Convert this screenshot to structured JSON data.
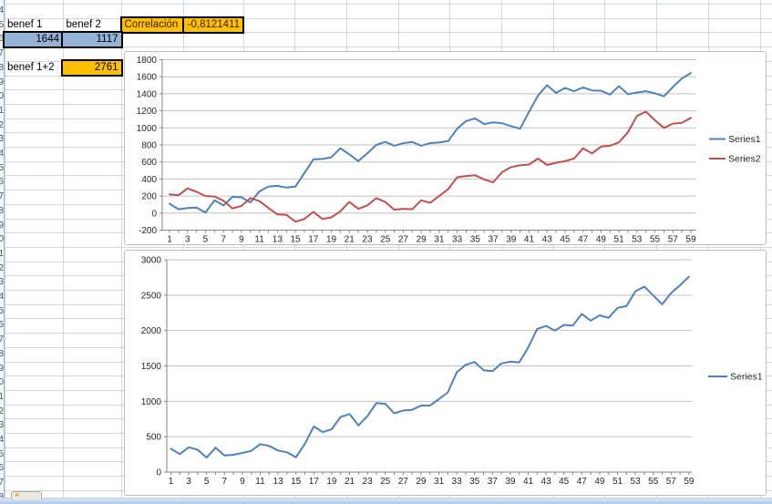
{
  "cells": {
    "benef1_label": "benef 1",
    "benef2_label": "benef 2",
    "benef1_value": "1644",
    "benef2_value": "1117",
    "correlation_label": "Correlación",
    "correlation_value": "-0,8121411",
    "sum_label": "benef 1+2",
    "sum_value": "2761"
  },
  "row_digits": [
    "3",
    "4",
    "5",
    "6",
    "7",
    "8",
    "9",
    "0",
    "1",
    "2",
    "3",
    "4",
    "5",
    "6",
    "7",
    "8",
    "9",
    "0",
    "1",
    "2",
    "3",
    "4",
    "5",
    "6",
    "7",
    "8",
    "9",
    "0",
    "1",
    "2",
    "3",
    "4",
    "5",
    "6",
    "7",
    "8"
  ],
  "icons": {
    "insert_worksheet": "star-icon",
    "insert_worksheet_glyph": "✶"
  },
  "colors": {
    "series1": "#4f81bd",
    "series2": "#c0504d",
    "cell_blue_fill": "#95b3d7",
    "cell_orange_fill": "#ffc000",
    "sheet_gridline": "#d0d7e5",
    "chart_gridline": "#c3c3c3",
    "chart_axis": "#868686",
    "chart_text": "#262626"
  },
  "chart_data": [
    {
      "type": "line",
      "title": "",
      "x": [
        1,
        2,
        3,
        4,
        5,
        6,
        7,
        8,
        9,
        10,
        11,
        12,
        13,
        14,
        15,
        16,
        17,
        18,
        19,
        20,
        21,
        22,
        23,
        24,
        25,
        26,
        27,
        28,
        29,
        30,
        31,
        32,
        33,
        34,
        35,
        36,
        37,
        38,
        39,
        40,
        41,
        42,
        43,
        44,
        45,
        46,
        47,
        48,
        49,
        50,
        51,
        52,
        53,
        54,
        55,
        56,
        57,
        58,
        59
      ],
      "series": [
        {
          "name": "Series1",
          "color": "#4f81bd",
          "values": [
            110,
            45,
            60,
            65,
            5,
            150,
            90,
            190,
            185,
            125,
            255,
            310,
            320,
            300,
            310,
            470,
            630,
            635,
            655,
            760,
            690,
            610,
            700,
            800,
            835,
            790,
            820,
            835,
            790,
            820,
            830,
            845,
            990,
            1080,
            1110,
            1045,
            1065,
            1055,
            1020,
            990,
            1190,
            1380,
            1500,
            1410,
            1470,
            1430,
            1475,
            1440,
            1435,
            1390,
            1490,
            1395,
            1415,
            1430,
            1405,
            1370,
            1480,
            1580,
            1644
          ]
        },
        {
          "name": "Series2",
          "color": "#c0504d",
          "values": [
            220,
            210,
            290,
            250,
            200,
            195,
            145,
            55,
            85,
            175,
            140,
            60,
            -15,
            -20,
            -100,
            -70,
            15,
            -70,
            -50,
            20,
            130,
            50,
            90,
            175,
            130,
            40,
            50,
            45,
            150,
            120,
            200,
            280,
            420,
            435,
            445,
            395,
            360,
            480,
            540,
            560,
            570,
            640,
            565,
            590,
            610,
            640,
            760,
            700,
            780,
            790,
            830,
            950,
            1140,
            1190,
            1090,
            1000,
            1050,
            1060,
            1117
          ]
        }
      ],
      "ylim": [
        -200,
        1800
      ],
      "ystep": 200,
      "ytick_labels": [
        "1800",
        "1600",
        "1400",
        "1200",
        "1000",
        "800",
        "600",
        "400",
        "200",
        "0",
        "-200"
      ],
      "xtick_labels": [
        "1",
        "3",
        "5",
        "7",
        "9",
        "11",
        "13",
        "15",
        "17",
        "19",
        "21",
        "23",
        "25",
        "27",
        "29",
        "31",
        "33",
        "35",
        "37",
        "39",
        "41",
        "43",
        "45",
        "47",
        "49",
        "51",
        "53",
        "55",
        "57",
        "59"
      ],
      "legend_position": "right",
      "grid": true
    },
    {
      "type": "line",
      "title": "",
      "x": [
        1,
        2,
        3,
        4,
        5,
        6,
        7,
        8,
        9,
        10,
        11,
        12,
        13,
        14,
        15,
        16,
        17,
        18,
        19,
        20,
        21,
        22,
        23,
        24,
        25,
        26,
        27,
        28,
        29,
        30,
        31,
        32,
        33,
        34,
        35,
        36,
        37,
        38,
        39,
        40,
        41,
        42,
        43,
        44,
        45,
        46,
        47,
        48,
        49,
        50,
        51,
        52,
        53,
        54,
        55,
        56,
        57,
        58,
        59
      ],
      "series": [
        {
          "name": "Series1",
          "color": "#4f81bd",
          "values": [
            330,
            255,
            350,
            315,
            205,
            345,
            235,
            245,
            270,
            300,
            395,
            370,
            305,
            280,
            210,
            400,
            645,
            565,
            605,
            780,
            820,
            660,
            790,
            975,
            965,
            830,
            870,
            880,
            940,
            940,
            1030,
            1125,
            1410,
            1515,
            1555,
            1440,
            1425,
            1535,
            1560,
            1550,
            1760,
            2020,
            2065,
            2000,
            2080,
            2070,
            2235,
            2140,
            2215,
            2180,
            2320,
            2345,
            2555,
            2620,
            2495,
            2370,
            2530,
            2640,
            2761
          ]
        }
      ],
      "ylim": [
        0,
        3000
      ],
      "ystep": 500,
      "ytick_labels": [
        "3000",
        "2500",
        "2000",
        "1500",
        "1000",
        "500",
        "0"
      ],
      "xtick_labels": [
        "1",
        "3",
        "5",
        "7",
        "9",
        "11",
        "13",
        "15",
        "17",
        "19",
        "21",
        "23",
        "25",
        "27",
        "29",
        "31",
        "33",
        "35",
        "37",
        "39",
        "41",
        "43",
        "45",
        "47",
        "49",
        "51",
        "53",
        "55",
        "57",
        "59"
      ],
      "legend_position": "right",
      "grid": true
    }
  ]
}
